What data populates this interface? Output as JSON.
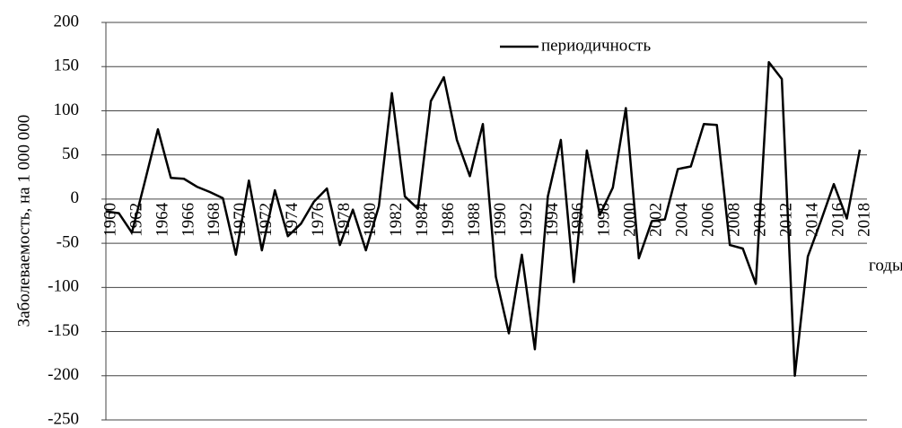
{
  "chart_data": {
    "type": "line",
    "y_label": "Заболеваемость, на 1 000 000",
    "x_label": "годы",
    "categories": [
      "1960",
      null,
      "1962",
      null,
      "1964",
      null,
      "1966",
      null,
      "1968",
      null,
      "1970",
      null,
      "1972",
      null,
      "1974",
      null,
      "1976",
      null,
      "1978",
      null,
      "1980",
      null,
      "1982",
      null,
      "1984",
      null,
      "1986",
      null,
      "1988",
      null,
      "1990",
      null,
      "1992",
      null,
      "1994",
      null,
      "1996",
      null,
      "1998",
      null,
      "2000",
      null,
      "2002",
      null,
      "2004",
      null,
      "2006",
      null,
      "2008",
      null,
      "2010",
      null,
      "2012",
      null,
      "2014",
      null,
      "2016",
      null,
      "2018"
    ],
    "series": [
      {
        "name": "периодичность",
        "color": "#000000",
        "values": [
          -14,
          -16,
          -38,
          20,
          79,
          24,
          23,
          14,
          8,
          1,
          -63,
          21,
          -58,
          10,
          -42,
          -28,
          -3,
          12,
          -52,
          -12,
          -58,
          -8,
          120,
          3,
          -11,
          111,
          138,
          67,
          26,
          85,
          -88,
          -152,
          -63,
          -170,
          3,
          67,
          -94,
          55,
          -18,
          13,
          103,
          -67,
          -25,
          -23,
          34,
          37,
          85,
          84,
          -52,
          -56,
          -96,
          155,
          136,
          -200,
          -65,
          -25,
          17,
          -22,
          56
        ]
      }
    ],
    "ylim": [
      -250,
      200
    ],
    "yticks": [
      -250,
      -200,
      -150,
      -100,
      -50,
      0,
      50,
      100,
      150,
      200
    ],
    "grid": true,
    "legend": "top"
  }
}
